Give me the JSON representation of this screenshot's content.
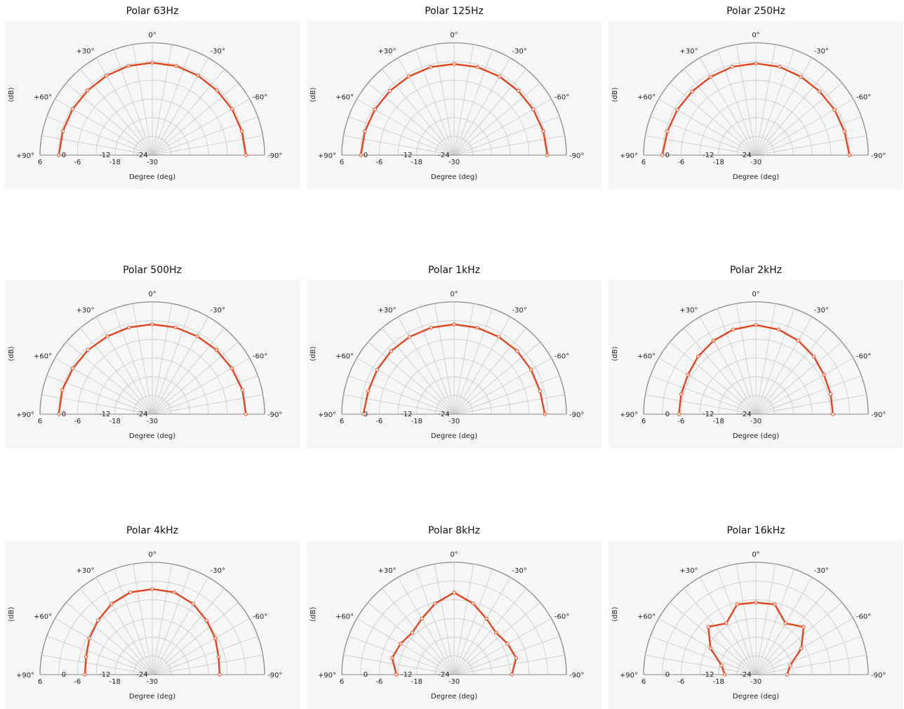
{
  "chart_data": [
    {
      "type": "polar",
      "title": "Polar 63Hz",
      "xlabel": "Degree (deg)",
      "ylabel": "(dB)",
      "angles": [
        90,
        75,
        60,
        45,
        30,
        15,
        0,
        -15,
        -30,
        -45,
        -60,
        -75,
        -90
      ],
      "values": [
        0,
        -0.3,
        -0.5,
        -0.7,
        -0.6,
        -0.4,
        -0.4,
        -0.4,
        -0.6,
        -0.7,
        -0.5,
        -0.3,
        0
      ]
    },
    {
      "type": "polar",
      "title": "Polar 125Hz",
      "xlabel": "Degree (deg)",
      "ylabel": "(dB)",
      "angles": [
        90,
        75,
        60,
        45,
        30,
        15,
        0,
        -15,
        -30,
        -45,
        -60,
        -75,
        -90
      ],
      "values": [
        -0.1,
        -0.4,
        -0.7,
        -0.9,
        -0.9,
        -0.8,
        -0.8,
        -0.8,
        -0.9,
        -0.9,
        -0.7,
        -0.4,
        -0.1
      ]
    },
    {
      "type": "polar",
      "title": "Polar 250Hz",
      "xlabel": "Degree (deg)",
      "ylabel": "(dB)",
      "angles": [
        90,
        75,
        60,
        45,
        30,
        15,
        0,
        -15,
        -30,
        -45,
        -60,
        -75,
        -90
      ],
      "values": [
        0,
        -0.6,
        -0.9,
        -1.1,
        -1,
        -0.7,
        -0.6,
        -0.7,
        -1,
        -1.1,
        -0.9,
        -0.6,
        0
      ]
    },
    {
      "type": "polar",
      "title": "Polar 500Hz",
      "xlabel": "Degree (deg)",
      "ylabel": "(dB)",
      "angles": [
        90,
        75,
        60,
        45,
        30,
        15,
        0,
        -15,
        -30,
        -45,
        -60,
        -75,
        -90
      ],
      "values": [
        0,
        -0.1,
        -0.6,
        -0.9,
        -1.2,
        -1.2,
        -1.2,
        -1.2,
        -1.2,
        -0.9,
        -0.6,
        -0.1,
        0
      ]
    },
    {
      "type": "polar",
      "title": "Polar 1kHz",
      "xlabel": "Degree (deg)",
      "ylabel": "(dB)",
      "angles": [
        90,
        75,
        60,
        45,
        30,
        15,
        0,
        -15,
        -30,
        -45,
        -60,
        -75,
        -90
      ],
      "values": [
        -0.9,
        -1.5,
        -1.5,
        -1.4,
        -1.4,
        -1.3,
        -1.2,
        -1.3,
        -1.4,
        -1.4,
        -1.5,
        -1.5,
        -0.9
      ]
    },
    {
      "type": "polar",
      "title": "Polar 2kHz",
      "xlabel": "Degree (deg)",
      "ylabel": "(dB)",
      "angles": [
        90,
        75,
        60,
        45,
        30,
        15,
        0,
        -15,
        -30,
        -45,
        -60,
        -75,
        -90
      ],
      "values": [
        -5.3,
        -5.2,
        -4.8,
        -3.8,
        -2.8,
        -1.9,
        -1.4,
        -1.9,
        -2.8,
        -3.8,
        -4.8,
        -5.2,
        -5.3
      ]
    },
    {
      "type": "polar",
      "title": "Polar 4kHz",
      "xlabel": "Degree (deg)",
      "ylabel": "(dB)",
      "angles": [
        90,
        75,
        60,
        45,
        30,
        15,
        0,
        -15,
        -30,
        -45,
        -60,
        -75,
        -90
      ],
      "values": [
        -8.4,
        -8,
        -6.7,
        -5.4,
        -3.8,
        -2.7,
        -2.6,
        -2.7,
        -3.8,
        -5.4,
        -6.7,
        -8,
        -8.4
      ]
    },
    {
      "type": "polar",
      "title": "Polar 8kHz",
      "xlabel": "Degree (deg)",
      "ylabel": "(dB)",
      "angles": [
        90,
        75,
        60,
        45,
        30,
        15,
        0,
        -15,
        -30,
        -45,
        -60,
        -75,
        -90
      ],
      "values": [
        -11.5,
        -9.4,
        -10.2,
        -11,
        -9.3,
        -6.4,
        -3.7,
        -6.4,
        -9.3,
        -11,
        -10.2,
        -9.4,
        -11.5
      ]
    },
    {
      "type": "polar",
      "title": "Polar 16kHz",
      "xlabel": "Degree (deg)",
      "ylabel": "(dB)",
      "angles": [
        90,
        75,
        60,
        45,
        30,
        15,
        0,
        -15,
        -30,
        -45,
        -60,
        -75,
        -90
      ],
      "values": [
        -20,
        -18.6,
        -13.2,
        -8.4,
        -11,
        -6.7,
        -6.9,
        -6.7,
        -11,
        -8.4,
        -13.2,
        -18.6,
        -20
      ]
    }
  ],
  "axis": {
    "rmax": 6,
    "rmin": -30,
    "ring_values": [
      6,
      0,
      -6,
      -12,
      -18,
      -24,
      -30
    ],
    "radial_tick_labels": [
      "6",
      "0",
      "-6",
      "-12",
      "-18",
      "-24",
      "-30"
    ],
    "angle_labels": [
      {
        "angle": 0,
        "label": "0°"
      },
      {
        "angle": 30,
        "label": "+30°"
      },
      {
        "angle": -30,
        "label": "-30°"
      },
      {
        "angle": 60,
        "label": "+60°"
      },
      {
        "angle": -60,
        "label": "-60°"
      },
      {
        "angle": 90,
        "label": "+90°"
      },
      {
        "angle": -90,
        "label": "-90°"
      }
    ],
    "spoke_step_deg": 10
  },
  "colors": {
    "series": "#e2451d",
    "marker_fill": "#f9d9c8",
    "grid": "#cfcfcf",
    "outer_ring": "#8a8a8a",
    "plot_background": "#f6f6f6"
  }
}
